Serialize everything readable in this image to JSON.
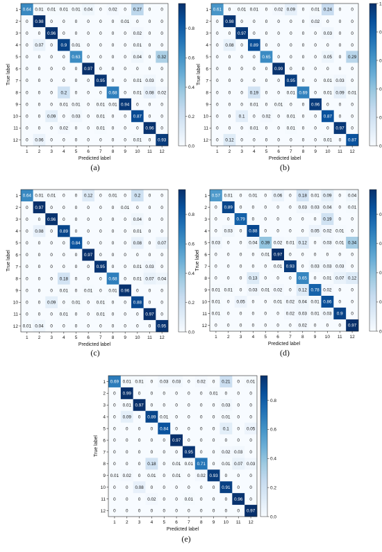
{
  "chart_data": [
    {
      "type": "heatmap",
      "panel_label": "(a)",
      "xlabel": "Predicted label",
      "ylabel": "True label",
      "categories": [
        "1",
        "2",
        "3",
        "4",
        "5",
        "6",
        "7",
        "8",
        "9",
        "10",
        "11",
        "12"
      ],
      "colorbar_ticks": [
        "0.0",
        "0.2",
        "0.4",
        "0.6",
        "0.8"
      ],
      "colorbar_range": [
        0,
        0.97
      ],
      "matrix": [
        [
          0.64,
          0.01,
          0.01,
          0.01,
          0.01,
          0.04,
          0.0,
          0.02,
          0.0,
          0.27,
          0.0,
          0.0
        ],
        [
          0.0,
          0.98,
          0.0,
          0.0,
          0.0,
          0.0,
          0.0,
          0.0,
          0.01,
          0.0,
          0.0,
          0.0
        ],
        [
          0.0,
          0.0,
          0.96,
          0.0,
          0.0,
          0.0,
          0.0,
          0.0,
          0.0,
          0.02,
          0.0,
          0.0
        ],
        [
          0.0,
          0.07,
          0.0,
          0.9,
          0.01,
          0.0,
          0.0,
          0.0,
          0.0,
          0.01,
          0.0,
          0.0
        ],
        [
          0.0,
          0.0,
          0.0,
          0.0,
          0.63,
          0.0,
          0.0,
          0.0,
          0.0,
          0.04,
          0.0,
          0.32
        ],
        [
          0.0,
          0.0,
          0.0,
          0.0,
          0.0,
          0.97,
          0.0,
          0.0,
          0.0,
          0.0,
          0.0,
          0.0
        ],
        [
          0.0,
          0.0,
          0.0,
          0.0,
          0.0,
          0.0,
          0.95,
          0.0,
          0.0,
          0.01,
          0.03,
          0.0
        ],
        [
          0.0,
          0.0,
          0.0,
          0.2,
          0.0,
          0.0,
          0.0,
          0.68,
          0.0,
          0.01,
          0.08,
          0.02
        ],
        [
          0.0,
          0.0,
          0.0,
          0.01,
          0.01,
          0.0,
          0.01,
          0.01,
          0.94,
          0.0,
          0.0,
          0.0
        ],
        [
          0.0,
          0.0,
          0.09,
          0.0,
          0.03,
          0.0,
          0.01,
          0.0,
          0.0,
          0.87,
          0.0,
          0.0
        ],
        [
          0.0,
          0.0,
          0.0,
          0.02,
          0.0,
          0.0,
          0.01,
          0.0,
          0.0,
          0.0,
          0.96,
          0.0
        ],
        [
          0.0,
          0.06,
          0.0,
          0.0,
          0.0,
          0.0,
          0.0,
          0.0,
          0.0,
          0.01,
          0.0,
          0.93
        ]
      ]
    },
    {
      "type": "heatmap",
      "panel_label": "(b)",
      "xlabel": "Predicted label",
      "ylabel": "True label",
      "categories": [
        "1",
        "2",
        "3",
        "4",
        "5",
        "6",
        "7",
        "8",
        "9",
        "10",
        "11",
        "12"
      ],
      "colorbar_ticks": [
        "0.0",
        "0.2",
        "0.4",
        "0.6",
        "0.8",
        "1.0"
      ],
      "colorbar_range": [
        0,
        1.0
      ],
      "matrix": [
        [
          0.61,
          0.0,
          0.01,
          0.01,
          0.0,
          0.02,
          0.09,
          0.0,
          0.01,
          0.24,
          0.0,
          0.0
        ],
        [
          0.0,
          0.98,
          0.0,
          0.0,
          0.0,
          0.0,
          0.0,
          0.0,
          0.02,
          0.0,
          0.0,
          0.0
        ],
        [
          0.0,
          0.0,
          0.97,
          0.0,
          0.0,
          0.0,
          0.0,
          0.0,
          0.0,
          0.03,
          0.0,
          0.0
        ],
        [
          0.0,
          0.08,
          0.0,
          0.89,
          0.0,
          0.0,
          0.0,
          0.0,
          0.0,
          0.0,
          0.0,
          0.0
        ],
        [
          0.0,
          0.0,
          0.0,
          0.0,
          0.65,
          0.0,
          0.0,
          0.0,
          0.0,
          0.05,
          0.0,
          0.29
        ],
        [
          0.0,
          0.0,
          0.0,
          0.0,
          0.0,
          0.99,
          0.0,
          0.0,
          0.0,
          0.0,
          0.0,
          0.0
        ],
        [
          0.0,
          0.0,
          0.0,
          0.0,
          0.0,
          0.0,
          0.95,
          0.0,
          0.0,
          0.01,
          0.03,
          0.0
        ],
        [
          0.0,
          0.0,
          0.0,
          0.19,
          0.0,
          0.0,
          0.01,
          0.69,
          0.0,
          0.01,
          0.09,
          0.01
        ],
        [
          0.0,
          0.0,
          0.0,
          0.01,
          0.0,
          0.01,
          0.0,
          0.0,
          0.96,
          0.0,
          0.0,
          0.0
        ],
        [
          0.0,
          0.0,
          0.1,
          0.0,
          0.02,
          0.0,
          0.01,
          0.0,
          0.0,
          0.87,
          0.0,
          0.0
        ],
        [
          0.0,
          0.0,
          0.0,
          0.01,
          0.0,
          0.0,
          0.01,
          0.0,
          0.0,
          0.0,
          0.97,
          0.0
        ],
        [
          0.0,
          0.12,
          0.0,
          0.0,
          0.0,
          0.0,
          0.0,
          0.0,
          0.0,
          0.01,
          0.0,
          0.87
        ]
      ]
    },
    {
      "type": "heatmap",
      "panel_label": "(c)",
      "xlabel": "Predicted label",
      "ylabel": "True label",
      "categories": [
        "1",
        "2",
        "3",
        "4",
        "5",
        "6",
        "7",
        "8",
        "9",
        "10",
        "11",
        "12"
      ],
      "colorbar_ticks": [
        "0.0",
        "0.2",
        "0.4",
        "0.6",
        "0.8"
      ],
      "colorbar_range": [
        0,
        0.97
      ],
      "matrix": [
        [
          0.64,
          0.01,
          0.01,
          0.0,
          0.0,
          0.12,
          0.0,
          0.01,
          0.0,
          0.2,
          0.0,
          0.0
        ],
        [
          0.0,
          0.97,
          0.0,
          0.0,
          0.0,
          0.0,
          0.0,
          0.0,
          0.01,
          0.0,
          0.0,
          0.0
        ],
        [
          0.0,
          0.0,
          0.96,
          0.0,
          0.0,
          0.0,
          0.0,
          0.0,
          0.0,
          0.04,
          0.0,
          0.0
        ],
        [
          0.0,
          0.08,
          0.0,
          0.89,
          0.0,
          0.0,
          0.0,
          0.0,
          0.0,
          0.01,
          0.0,
          0.0
        ],
        [
          0.0,
          0.0,
          0.0,
          0.0,
          0.84,
          0.0,
          0.0,
          0.0,
          0.0,
          0.08,
          0.0,
          0.07
        ],
        [
          0.0,
          0.0,
          0.0,
          0.0,
          0.0,
          0.97,
          0.0,
          0.0,
          0.0,
          0.0,
          0.0,
          0.0
        ],
        [
          0.0,
          0.0,
          0.0,
          0.0,
          0.0,
          0.0,
          0.95,
          0.0,
          0.0,
          0.01,
          0.03,
          0.0
        ],
        [
          0.0,
          0.0,
          0.0,
          0.18,
          0.0,
          0.0,
          0.0,
          0.68,
          0.0,
          0.01,
          0.07,
          0.04
        ],
        [
          0.0,
          0.0,
          0.0,
          0.01,
          0.0,
          0.01,
          0.0,
          0.01,
          0.96,
          0.0,
          0.0,
          0.0
        ],
        [
          0.0,
          0.0,
          0.09,
          0.0,
          0.01,
          0.0,
          0.01,
          0.0,
          0.0,
          0.88,
          0.0,
          0.0
        ],
        [
          0.0,
          0.0,
          0.0,
          0.01,
          0.0,
          0.0,
          0.01,
          0.0,
          0.0,
          0.0,
          0.97,
          0.0
        ],
        [
          0.01,
          0.04,
          0.0,
          0.0,
          0.0,
          0.0,
          0.0,
          0.0,
          0.0,
          0.0,
          0.0,
          0.95
        ]
      ]
    },
    {
      "type": "heatmap",
      "panel_label": "(d)",
      "xlabel": "Predicted label",
      "ylabel": "True label",
      "categories": [
        "1",
        "2",
        "3",
        "4",
        "5",
        "6",
        "7",
        "8",
        "9",
        "10",
        "11",
        "12"
      ],
      "colorbar_ticks": [
        "0.0",
        "0.2",
        "0.4",
        "0.6",
        "0.8"
      ],
      "colorbar_range": [
        0,
        0.97
      ],
      "matrix": [
        [
          0.57,
          0.01,
          0.0,
          0.01,
          0.0,
          0.06,
          0.0,
          0.18,
          0.01,
          0.09,
          0.0,
          0.04
        ],
        [
          0.0,
          0.89,
          0.0,
          0.0,
          0.0,
          0.0,
          0.0,
          0.03,
          0.03,
          0.04,
          0.0,
          0.01
        ],
        [
          0.0,
          0.0,
          0.79,
          0.0,
          0.0,
          0.0,
          0.0,
          0.0,
          0.0,
          0.19,
          0.0,
          0.0
        ],
        [
          0.0,
          0.03,
          0.0,
          0.88,
          0.0,
          0.0,
          0.0,
          0.0,
          0.05,
          0.02,
          0.01,
          0.0
        ],
        [
          0.03,
          0.0,
          0.0,
          0.04,
          0.39,
          0.02,
          0.01,
          0.12,
          0.0,
          0.03,
          0.01,
          0.34
        ],
        [
          0.0,
          0.0,
          0.0,
          0.0,
          0.01,
          0.97,
          0.0,
          0.0,
          0.0,
          0.0,
          0.0,
          0.0
        ],
        [
          0.0,
          0.0,
          0.0,
          0.0,
          0.0,
          0.01,
          0.93,
          0.0,
          0.03,
          0.03,
          0.03,
          0.0
        ],
        [
          0.0,
          0.0,
          0.0,
          0.13,
          0.0,
          0.0,
          0.0,
          0.65,
          0.0,
          0.01,
          0.07,
          0.12
        ],
        [
          0.01,
          0.01,
          0.0,
          0.03,
          0.01,
          0.02,
          0.0,
          0.12,
          0.78,
          0.02,
          0.0,
          0.0
        ],
        [
          0.01,
          0.0,
          0.05,
          0.0,
          0.0,
          0.01,
          0.02,
          0.04,
          0.01,
          0.86,
          0.0,
          0.0
        ],
        [
          0.01,
          0.0,
          0.0,
          0.0,
          0.0,
          0.0,
          0.02,
          0.03,
          0.01,
          0.03,
          0.9,
          0.0
        ],
        [
          0.0,
          0.0,
          0.0,
          0.0,
          0.0,
          0.0,
          0.0,
          0.02,
          0.0,
          0.0,
          0.0,
          0.97
        ]
      ]
    },
    {
      "type": "heatmap",
      "panel_label": "(e)",
      "xlabel": "Predicted label",
      "ylabel": "True label",
      "categories": [
        "1",
        "2",
        "3",
        "4",
        "5",
        "6",
        "7",
        "8",
        "9",
        "10",
        "11",
        "12"
      ],
      "colorbar_ticks": [
        "0.0",
        "0.2",
        "0.4",
        "0.6",
        "0.8"
      ],
      "colorbar_range": [
        0,
        0.97
      ],
      "matrix": [
        [
          0.69,
          0.01,
          0.01,
          0.0,
          0.03,
          0.03,
          0.0,
          0.02,
          0.0,
          0.21,
          0.0,
          0.01
        ],
        [
          0.0,
          0.99,
          0.0,
          0.0,
          0.0,
          0.0,
          0.0,
          0.0,
          0.01,
          0.0,
          0.0,
          0.0
        ],
        [
          0.0,
          0.01,
          0.97,
          0.0,
          0.0,
          0.0,
          0.0,
          0.0,
          0.0,
          0.03,
          0.0,
          0.0
        ],
        [
          0.0,
          0.09,
          0.0,
          0.89,
          0.01,
          0.0,
          0.0,
          0.0,
          0.0,
          0.01,
          0.0,
          0.0
        ],
        [
          0.0,
          0.0,
          0.0,
          0.0,
          0.84,
          0.0,
          0.0,
          0.0,
          0.0,
          0.1,
          0.0,
          0.05
        ],
        [
          0.0,
          0.0,
          0.0,
          0.0,
          0.0,
          0.97,
          0.0,
          0.0,
          0.0,
          0.0,
          0.0,
          0.0
        ],
        [
          0.0,
          0.0,
          0.0,
          0.0,
          0.0,
          0.0,
          0.95,
          0.0,
          0.0,
          0.02,
          0.03,
          0.0
        ],
        [
          0.0,
          0.0,
          0.0,
          0.18,
          0.0,
          0.01,
          0.01,
          0.71,
          0.0,
          0.01,
          0.07,
          0.03
        ],
        [
          0.01,
          0.02,
          0.0,
          0.01,
          0.0,
          0.01,
          0.0,
          0.02,
          0.93,
          0.0,
          0.0,
          0.0
        ],
        [
          0.0,
          0.0,
          0.08,
          0.0,
          0.0,
          0.0,
          0.0,
          0.0,
          0.0,
          0.91,
          0.0,
          0.0
        ],
        [
          0.0,
          0.0,
          0.0,
          0.02,
          0.0,
          0.0,
          0.01,
          0.0,
          0.0,
          0.0,
          0.96,
          0.0
        ],
        [
          0.0,
          0.0,
          0.0,
          0.0,
          0.0,
          0.0,
          0.0,
          0.0,
          0.0,
          0.0,
          0.0,
          0.97
        ]
      ]
    }
  ],
  "colormap": {
    "low": "#f7fbff",
    "high": "#08306b"
  }
}
